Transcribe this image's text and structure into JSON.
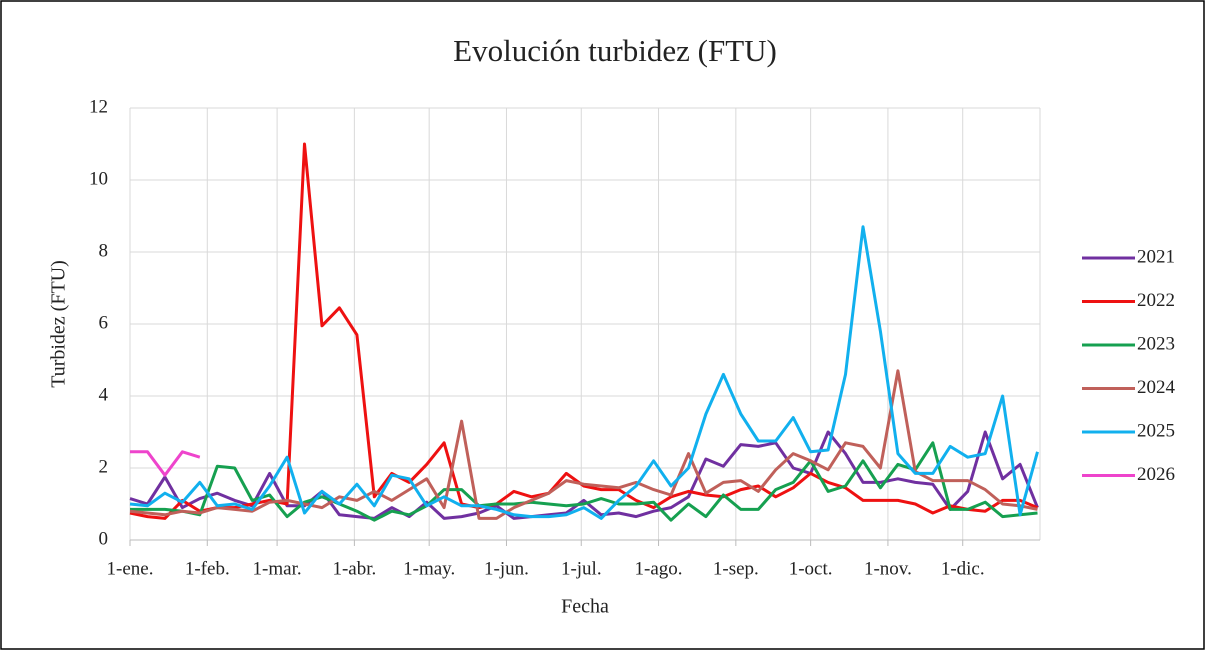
{
  "chart_data": {
    "type": "line",
    "title": "Evolución turbidez (FTU)",
    "x_label": "Fecha",
    "y_label": "Turbidez (FTU)",
    "x": [
      1,
      8,
      15,
      22,
      29,
      36,
      43,
      50,
      57,
      64,
      71,
      78,
      85,
      92,
      99,
      106,
      113,
      120,
      127,
      134,
      141,
      148,
      155,
      162,
      169,
      176,
      183,
      190,
      197,
      204,
      211,
      218,
      225,
      232,
      239,
      246,
      253,
      260,
      267,
      274,
      281,
      288,
      295,
      302,
      309,
      316,
      323,
      330,
      337,
      344,
      351,
      358,
      365
    ],
    "xlim": [
      1,
      366
    ],
    "xticks": [
      {
        "value": 1,
        "label": "1-ene."
      },
      {
        "value": 32,
        "label": "1-feb."
      },
      {
        "value": 60,
        "label": "1-mar."
      },
      {
        "value": 91,
        "label": "1-abr."
      },
      {
        "value": 121,
        "label": "1-may."
      },
      {
        "value": 152,
        "label": "1-jun."
      },
      {
        "value": 182,
        "label": "1-jul."
      },
      {
        "value": 213,
        "label": "1-ago."
      },
      {
        "value": 244,
        "label": "1-sep."
      },
      {
        "value": 274,
        "label": "1-oct."
      },
      {
        "value": 305,
        "label": "1-nov."
      },
      {
        "value": 335,
        "label": "1-dic."
      }
    ],
    "ylim": [
      0,
      12
    ],
    "yticks": [
      0,
      2,
      4,
      6,
      8,
      10,
      12
    ],
    "grid": true,
    "legend": "right",
    "series": [
      {
        "name": "2021",
        "color": "#7030a0",
        "values": [
          1.15,
          1.0,
          1.75,
          0.9,
          1.15,
          1.3,
          1.1,
          0.95,
          1.85,
          0.95,
          0.95,
          1.35,
          0.7,
          0.65,
          0.6,
          0.9,
          0.65,
          1.05,
          0.6,
          0.65,
          0.75,
          0.95,
          0.6,
          0.65,
          0.7,
          0.75,
          1.1,
          0.7,
          0.75,
          0.65,
          0.8,
          0.9,
          1.2,
          2.25,
          2.05,
          2.65,
          2.6,
          2.7,
          2.0,
          1.85,
          3.0,
          2.4,
          1.6,
          1.6,
          1.7,
          1.6,
          1.55,
          0.85,
          1.35,
          3.0,
          1.7,
          2.1,
          0.9
        ]
      },
      {
        "name": "2022",
        "color": "#ee1111",
        "values": [
          0.75,
          0.65,
          0.6,
          1.1,
          0.8,
          0.9,
          0.9,
          1.0,
          1.1,
          1.0,
          11,
          5.95,
          6.45,
          5.7,
          1.2,
          1.85,
          1.6,
          2.1,
          2.7,
          1.0,
          0.9,
          1.0,
          1.35,
          1.2,
          1.3,
          1.85,
          1.5,
          1.4,
          1.4,
          1.1,
          0.9,
          1.2,
          1.35,
          1.25,
          1.2,
          1.4,
          1.5,
          1.2,
          1.45,
          1.85,
          1.6,
          1.45,
          1.1,
          1.1,
          1.1,
          1.0,
          0.75,
          0.95,
          0.85,
          0.8,
          1.1,
          1.1,
          0.9
        ]
      },
      {
        "name": "2023",
        "color": "#16a050",
        "values": [
          0.85,
          0.85,
          0.85,
          0.8,
          0.7,
          2.05,
          2.0,
          1.1,
          1.25,
          0.65,
          1.05,
          1.2,
          1.0,
          0.8,
          0.55,
          0.8,
          0.7,
          0.95,
          1.4,
          1.4,
          0.95,
          1.0,
          1.0,
          1.05,
          1.0,
          0.95,
          1.0,
          1.15,
          1.0,
          1.0,
          1.05,
          0.55,
          1.0,
          0.65,
          1.25,
          0.85,
          0.85,
          1.4,
          1.6,
          2.2,
          1.35,
          1.5,
          2.2,
          1.45,
          2.1,
          1.95,
          2.7,
          0.85,
          0.85,
          1.05,
          0.65,
          0.7,
          0.75
        ]
      },
      {
        "name": "2024",
        "color": "#c0605a",
        "values": [
          0.8,
          0.75,
          0.7,
          0.8,
          0.75,
          0.9,
          0.85,
          0.8,
          1.05,
          1.1,
          1.0,
          0.9,
          1.2,
          1.1,
          1.35,
          1.1,
          1.4,
          1.7,
          0.9,
          3.3,
          0.6,
          0.6,
          0.9,
          1.1,
          1.3,
          1.65,
          1.55,
          1.5,
          1.45,
          1.6,
          1.4,
          1.25,
          2.4,
          1.3,
          1.6,
          1.65,
          1.35,
          1.95,
          2.4,
          2.2,
          1.95,
          2.7,
          2.6,
          2.0,
          4.7,
          1.9,
          1.65,
          1.65,
          1.65,
          1.4,
          1.0,
          0.95,
          0.85
        ]
      },
      {
        "name": "2025",
        "color": "#11b0ee",
        "values": [
          1.0,
          0.95,
          1.3,
          1.05,
          1.6,
          0.95,
          1.0,
          0.85,
          1.5,
          2.3,
          0.75,
          1.35,
          1.0,
          1.55,
          0.95,
          1.8,
          1.7,
          0.95,
          1.2,
          0.95,
          0.95,
          0.85,
          0.7,
          0.65,
          0.65,
          0.7,
          0.9,
          0.6,
          1.1,
          1.5,
          2.2,
          1.5,
          2.0,
          3.5,
          4.6,
          3.5,
          2.75,
          2.75,
          3.4,
          2.45,
          2.5,
          4.6,
          8.7,
          5.8,
          2.4,
          1.85,
          1.85,
          2.6,
          2.3,
          2.4,
          4.0,
          0.7,
          2.45
        ]
      },
      {
        "name": "2026",
        "color": "#ee44cc",
        "values": [
          2.45,
          2.45,
          1.8,
          2.45,
          2.3,
          null,
          null,
          null,
          null,
          null,
          null,
          null,
          null,
          null,
          null,
          null,
          null,
          null,
          null,
          null,
          null,
          null,
          null,
          null,
          null,
          null,
          null,
          null,
          null,
          null,
          null,
          null,
          null,
          null,
          null,
          null,
          null,
          null,
          null,
          null,
          null,
          null,
          null,
          null,
          null,
          null,
          null,
          null,
          null,
          null,
          null,
          null,
          null
        ]
      }
    ]
  }
}
